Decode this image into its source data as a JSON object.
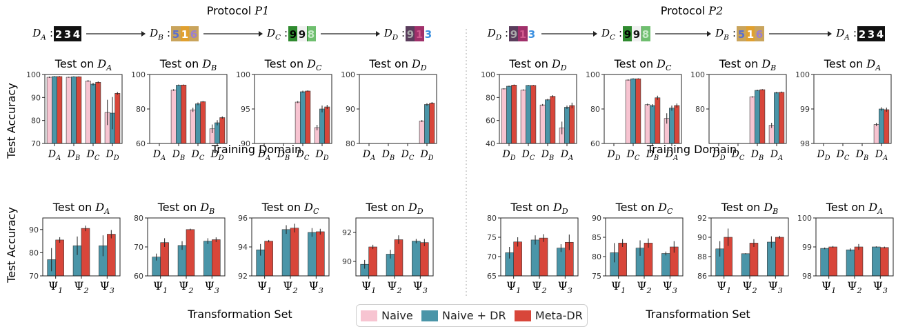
{
  "colors": {
    "naive": "#f7c4d1",
    "naive_dr": "#4a95a8",
    "meta_dr": "#d8463a",
    "error": "#222222"
  },
  "protocols": {
    "p1": {
      "label_prefix": "Protocol ",
      "label_var": "P1"
    },
    "p2": {
      "label_prefix": "Protocol ",
      "label_var": "P2"
    }
  },
  "domain_images": {
    "D_A": "mnist-digits",
    "D_B": "svhn-like digits",
    "D_C": "green digits",
    "D_D": "colored digits"
  },
  "flows": {
    "p1": [
      "D_A",
      "D_B",
      "D_C",
      "D_D"
    ],
    "p2": [
      "D_D",
      "D_C",
      "D_B",
      "D_A"
    ]
  },
  "shared_labels": {
    "ylabel": "Test Accuracy",
    "xlabel_top": "Training Domain",
    "xlabel_bottom": "Transformation Set"
  },
  "legend": [
    {
      "label": "Naive",
      "color_key": "naive"
    },
    {
      "label": "Naive + DR",
      "color_key": "naive_dr"
    },
    {
      "label": "Meta-DR",
      "color_key": "meta_dr"
    }
  ],
  "chart_data": [
    {
      "type": "bar",
      "group": "p1-top",
      "title": "Test on D_A",
      "categories": [
        "D_A",
        "D_B",
        "D_C",
        "D_D"
      ],
      "ylim": [
        70,
        100
      ],
      "yticks": [
        70,
        80,
        90,
        100
      ],
      "series": [
        {
          "name": "Naive",
          "values": [
            98.8,
            98.8,
            97.2,
            83.5
          ],
          "err": [
            0.3,
            0.2,
            0.4,
            5.5
          ]
        },
        {
          "name": "Naive + DR",
          "values": [
            99.1,
            99.0,
            95.8,
            83.2
          ],
          "err": [
            0.2,
            0.2,
            0.6,
            7.0
          ]
        },
        {
          "name": "Meta-DR",
          "values": [
            99.1,
            99.0,
            96.6,
            91.8
          ],
          "err": [
            0.2,
            0.2,
            0.4,
            0.6
          ]
        }
      ]
    },
    {
      "type": "bar",
      "group": "p1-top",
      "title": "Test on D_B",
      "categories": [
        "D_A",
        "D_B",
        "D_C",
        "D_D"
      ],
      "ylim": [
        60,
        100
      ],
      "yticks": [
        60,
        80,
        100
      ],
      "series": [
        {
          "name": "Naive",
          "values": [
            null,
            91.0,
            79.5,
            68.5
          ],
          "err": [
            0,
            0.5,
            1.2,
            2.5
          ]
        },
        {
          "name": "Naive + DR",
          "values": [
            null,
            93.8,
            83.0,
            72.0
          ],
          "err": [
            0,
            0.4,
            0.8,
            1.5
          ]
        },
        {
          "name": "Meta-DR",
          "values": [
            null,
            93.9,
            84.2,
            75.0
          ],
          "err": [
            0,
            0.3,
            0.4,
            0.7
          ]
        }
      ]
    },
    {
      "type": "bar",
      "group": "p1-top",
      "title": "Test on D_C",
      "categories": [
        "D_A",
        "D_B",
        "D_C",
        "D_D"
      ],
      "ylim": [
        90,
        100
      ],
      "yticks": [
        90,
        95,
        100
      ],
      "series": [
        {
          "name": "Naive",
          "values": [
            null,
            null,
            96.0,
            92.3
          ],
          "err": [
            0,
            0,
            0.15,
            0.4
          ]
        },
        {
          "name": "Naive + DR",
          "values": [
            null,
            null,
            97.5,
            95.0
          ],
          "err": [
            0,
            0,
            0.15,
            0.5
          ]
        },
        {
          "name": "Meta-DR",
          "values": [
            null,
            null,
            97.6,
            95.3
          ],
          "err": [
            0,
            0,
            0.1,
            0.3
          ]
        }
      ]
    },
    {
      "type": "bar",
      "group": "p1-top",
      "title": "Test on D_D",
      "categories": [
        "D_A",
        "D_B",
        "D_C",
        "D_D"
      ],
      "ylim": [
        80,
        100
      ],
      "yticks": [
        80,
        90,
        100
      ],
      "series": [
        {
          "name": "Naive",
          "values": [
            null,
            null,
            null,
            86.5
          ],
          "err": [
            0,
            0,
            0,
            0.3
          ]
        },
        {
          "name": "Naive + DR",
          "values": [
            null,
            null,
            null,
            91.3
          ],
          "err": [
            0,
            0,
            0,
            0.4
          ]
        },
        {
          "name": "Meta-DR",
          "values": [
            null,
            null,
            null,
            91.7
          ],
          "err": [
            0,
            0,
            0,
            0.3
          ]
        }
      ]
    },
    {
      "type": "bar",
      "group": "p2-top",
      "title": "Test on D_D",
      "categories": [
        "D_D",
        "D_C",
        "D_B",
        "D_A"
      ],
      "ylim": [
        40,
        100
      ],
      "yticks": [
        40,
        60,
        80,
        100
      ],
      "series": [
        {
          "name": "Naive",
          "values": [
            87.5,
            86.5,
            73.5,
            53.5
          ],
          "err": [
            0.5,
            0.6,
            0.8,
            5.5
          ]
        },
        {
          "name": "Naive + DR",
          "values": [
            89.8,
            90.5,
            78.0,
            71.5
          ],
          "err": [
            0.5,
            0.4,
            0.8,
            1.5
          ]
        },
        {
          "name": "Meta-DR",
          "values": [
            90.8,
            90.5,
            81.0,
            73.0
          ],
          "err": [
            0.5,
            0.4,
            1.0,
            2.5
          ]
        }
      ]
    },
    {
      "type": "bar",
      "group": "p2-top",
      "title": "Test on D_C",
      "categories": [
        "D_D",
        "D_C",
        "D_B",
        "D_A"
      ],
      "ylim": [
        60,
        100
      ],
      "yticks": [
        60,
        80,
        100
      ],
      "series": [
        {
          "name": "Naive",
          "values": [
            null,
            96.8,
            82.5,
            74.5
          ],
          "err": [
            0,
            0.4,
            0.6,
            3.0
          ]
        },
        {
          "name": "Naive + DR",
          "values": [
            null,
            97.5,
            82.0,
            80.5
          ],
          "err": [
            0,
            0.3,
            0.8,
            1.5
          ]
        },
        {
          "name": "Meta-DR",
          "values": [
            null,
            97.5,
            86.5,
            82.0
          ],
          "err": [
            0,
            0.3,
            1.2,
            1.2
          ]
        }
      ]
    },
    {
      "type": "bar",
      "group": "p2-top",
      "title": "Test on D_B",
      "categories": [
        "D_D",
        "D_C",
        "D_B",
        "D_A"
      ],
      "ylim": [
        60,
        100
      ],
      "yticks": [
        80,
        100
      ],
      "series": [
        {
          "name": "Naive",
          "values": [
            null,
            null,
            87.0,
            70.5
          ],
          "err": [
            0,
            0,
            0.4,
            1.5
          ]
        },
        {
          "name": "Naive + DR",
          "values": [
            null,
            null,
            90.8,
            89.5
          ],
          "err": [
            0,
            0,
            0.4,
            0.5
          ]
        },
        {
          "name": "Meta-DR",
          "values": [
            null,
            null,
            91.2,
            89.7
          ],
          "err": [
            0,
            0,
            0.3,
            0.4
          ]
        }
      ]
    },
    {
      "type": "bar",
      "group": "p2-top",
      "title": "Test on D_A",
      "categories": [
        "D_D",
        "D_C",
        "D_B",
        "D_A"
      ],
      "ylim": [
        98,
        100
      ],
      "yticks": [
        98,
        99,
        100
      ],
      "series": [
        {
          "name": "Naive",
          "values": [
            null,
            null,
            null,
            98.55
          ],
          "err": [
            0,
            0,
            0,
            0.05
          ]
        },
        {
          "name": "Naive + DR",
          "values": [
            null,
            null,
            null,
            99.0
          ],
          "err": [
            0,
            0,
            0,
            0.05
          ]
        },
        {
          "name": "Meta-DR",
          "values": [
            null,
            null,
            null,
            98.98
          ],
          "err": [
            0,
            0,
            0,
            0.06
          ]
        }
      ]
    },
    {
      "type": "bar",
      "group": "p1-bottom",
      "title": "Test on D_A",
      "categories": [
        "Ψ_1",
        "Ψ_2",
        "Ψ_3"
      ],
      "ylim": [
        70,
        95
      ],
      "yticks": [
        70,
        80,
        90
      ],
      "series": [
        {
          "name": "Naive + DR",
          "values": [
            77.0,
            83.0,
            83.0
          ],
          "err": [
            5.0,
            4.0,
            4.5
          ]
        },
        {
          "name": "Meta-DR",
          "values": [
            85.5,
            90.5,
            88.0
          ],
          "err": [
            1.2,
            1.2,
            1.8
          ]
        }
      ]
    },
    {
      "type": "bar",
      "group": "p1-bottom",
      "title": "Test on D_B",
      "categories": [
        "Ψ_1",
        "Ψ_2",
        "Ψ_3"
      ],
      "ylim": [
        60,
        80
      ],
      "yticks": [
        60,
        70,
        80
      ],
      "series": [
        {
          "name": "Naive + DR",
          "values": [
            66.5,
            70.5,
            72.0
          ],
          "err": [
            1.2,
            1.5,
            1.0
          ]
        },
        {
          "name": "Meta-DR",
          "values": [
            71.5,
            76.0,
            72.5
          ],
          "err": [
            1.5,
            0.3,
            0.8
          ]
        }
      ]
    },
    {
      "type": "bar",
      "group": "p1-bottom",
      "title": "Test on D_C",
      "categories": [
        "Ψ_1",
        "Ψ_2",
        "Ψ_3"
      ],
      "ylim": [
        92,
        96
      ],
      "yticks": [
        92,
        94,
        96
      ],
      "series": [
        {
          "name": "Naive + DR",
          "values": [
            93.8,
            95.2,
            95.0
          ],
          "err": [
            0.4,
            0.3,
            0.3
          ]
        },
        {
          "name": "Meta-DR",
          "values": [
            94.4,
            95.3,
            95.05
          ],
          "err": [
            0.08,
            0.3,
            0.2
          ]
        }
      ]
    },
    {
      "type": "bar",
      "group": "p1-bottom",
      "title": "Test on D_D",
      "categories": [
        "Ψ_1",
        "Ψ_2",
        "Ψ_3"
      ],
      "ylim": [
        89,
        93
      ],
      "yticks": [
        90,
        92
      ],
      "series": [
        {
          "name": "Naive + DR",
          "values": [
            89.8,
            90.5,
            91.4
          ],
          "err": [
            0.3,
            0.3,
            0.15
          ]
        },
        {
          "name": "Meta-DR",
          "values": [
            91.0,
            91.5,
            91.3
          ],
          "err": [
            0.15,
            0.3,
            0.25
          ]
        }
      ]
    },
    {
      "type": "bar",
      "group": "p2-bottom",
      "title": "Test on D_D",
      "categories": [
        "Ψ_1",
        "Ψ_2",
        "Ψ_3"
      ],
      "ylim": [
        65,
        80
      ],
      "yticks": [
        65,
        70,
        75,
        80
      ],
      "series": [
        {
          "name": "Naive + DR",
          "values": [
            71.0,
            74.3,
            72.2
          ],
          "err": [
            1.5,
            1.2,
            1.0
          ]
        },
        {
          "name": "Meta-DR",
          "values": [
            73.8,
            74.8,
            73.7
          ],
          "err": [
            1.2,
            1.0,
            2.0
          ]
        }
      ]
    },
    {
      "type": "bar",
      "group": "p2-bottom",
      "title": "Test on D_C",
      "categories": [
        "Ψ_1",
        "Ψ_2",
        "Ψ_3"
      ],
      "ylim": [
        75,
        90
      ],
      "yticks": [
        75,
        80,
        85,
        90
      ],
      "series": [
        {
          "name": "Naive + DR",
          "values": [
            81.0,
            82.2,
            80.8
          ],
          "err": [
            2.5,
            2.0,
            0.5
          ]
        },
        {
          "name": "Meta-DR",
          "values": [
            83.5,
            83.5,
            82.5
          ],
          "err": [
            1.0,
            1.2,
            1.5
          ]
        }
      ]
    },
    {
      "type": "bar",
      "group": "p2-bottom",
      "title": "Test on D_B",
      "categories": [
        "Ψ_1",
        "Ψ_2",
        "Ψ_3"
      ],
      "ylim": [
        86,
        92
      ],
      "yticks": [
        86,
        88,
        90,
        92
      ],
      "series": [
        {
          "name": "Naive + DR",
          "values": [
            88.8,
            88.3,
            89.5
          ],
          "err": [
            0.8,
            0.05,
            0.6
          ]
        },
        {
          "name": "Meta-DR",
          "values": [
            90.0,
            89.4,
            90.0
          ],
          "err": [
            0.9,
            0.4,
            0.15
          ]
        }
      ]
    },
    {
      "type": "bar",
      "group": "p2-bottom",
      "title": "Test on D_A",
      "categories": [
        "Ψ_1",
        "Ψ_2",
        "Ψ_3"
      ],
      "ylim": [
        98,
        100
      ],
      "yticks": [
        98,
        99,
        100
      ],
      "series": [
        {
          "name": "Naive + DR",
          "values": [
            98.95,
            98.9,
            99.0
          ],
          "err": [
            0.03,
            0.05,
            0.02
          ]
        },
        {
          "name": "Meta-DR",
          "values": [
            99.0,
            99.0,
            98.98
          ],
          "err": [
            0.03,
            0.1,
            0.03
          ]
        }
      ]
    }
  ]
}
